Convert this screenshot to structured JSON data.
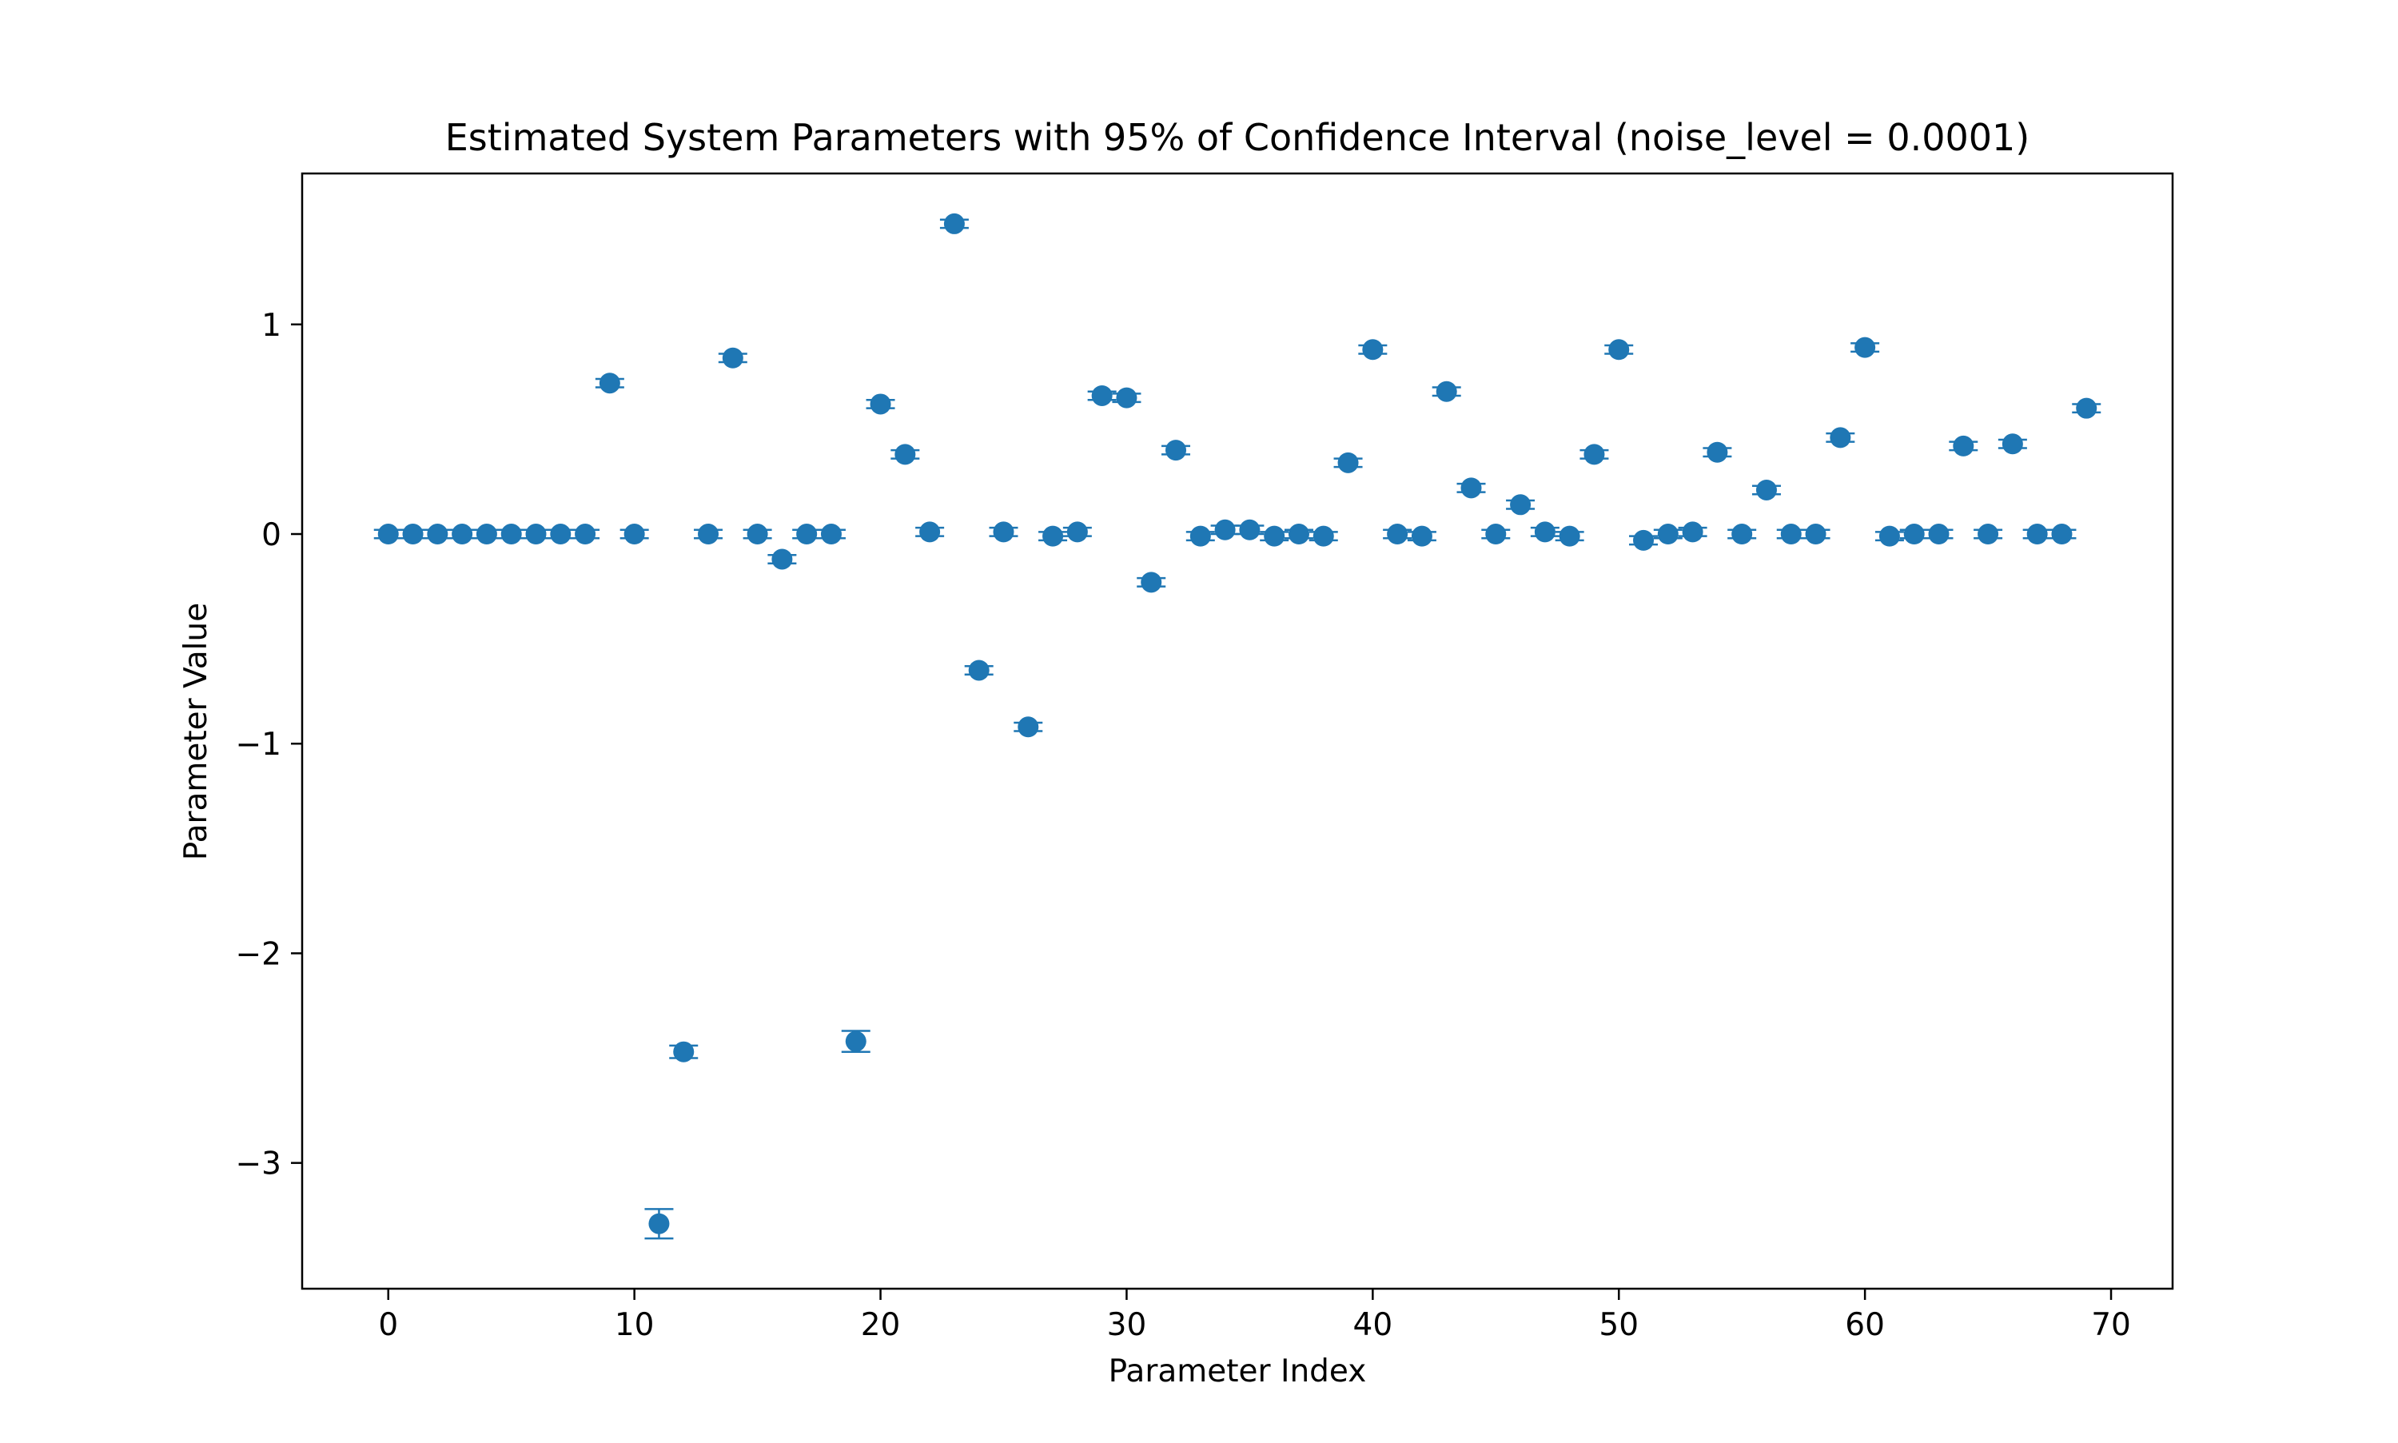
{
  "chart_data": {
    "type": "scatter",
    "title": "Estimated System Parameters with 95% of Confidence Interval (noise_level = 0.0001)",
    "xlabel": "Parameter Index",
    "ylabel": "Parameter Value",
    "xlim": [
      -3.5,
      72.5
    ],
    "ylim": [
      -3.6,
      1.72
    ],
    "xticks": [
      0,
      10,
      20,
      30,
      40,
      50,
      60,
      70
    ],
    "xtick_labels": [
      "0",
      "10",
      "20",
      "30",
      "40",
      "50",
      "60",
      "70"
    ],
    "yticks": [
      1,
      0,
      -1,
      -2,
      -3
    ],
    "ytick_labels": [
      "1",
      "0",
      "−1",
      "−2",
      "−3"
    ],
    "grid": false,
    "legend": "none",
    "color": "#1f77b4",
    "series": [
      {
        "x": [
          0,
          1,
          2,
          3,
          4,
          5,
          6,
          7,
          8,
          9,
          10,
          11,
          12,
          13,
          14,
          15,
          16,
          17,
          18,
          19,
          20,
          21,
          22,
          23,
          24,
          25,
          26,
          27,
          28,
          29,
          30,
          31,
          32,
          33,
          34,
          35,
          36,
          37,
          38,
          39,
          40,
          41,
          42,
          43,
          44,
          45,
          46,
          47,
          48,
          49,
          50,
          51,
          52,
          53,
          54,
          55,
          56,
          57,
          58,
          59,
          60,
          61,
          62,
          63,
          64,
          65,
          66,
          67,
          68,
          69
        ],
        "values": [
          0,
          0,
          0,
          0,
          0,
          0,
          0,
          0,
          0,
          0.72,
          0,
          -3.29,
          -2.47,
          0,
          0.84,
          0,
          -0.12,
          0,
          0,
          -2.42,
          0.62,
          0.38,
          0.01,
          1.48,
          -0.65,
          0.01,
          -0.92,
          -0.01,
          0.01,
          0.66,
          0.65,
          -0.23,
          0.4,
          -0.01,
          0.02,
          0.02,
          -0.01,
          0,
          -0.01,
          0.34,
          0.88,
          0,
          -0.01,
          0.68,
          0.22,
          0,
          0.14,
          0.01,
          -0.01,
          0.38,
          0.88,
          -0.03,
          0,
          0.01,
          0.39,
          0,
          0.21,
          0,
          0,
          0.46,
          0.89,
          -0.01,
          0,
          0,
          0.42,
          0,
          0.43,
          0,
          0,
          0.6
        ],
        "errors": [
          0.02,
          0.02,
          0.02,
          0.02,
          0.02,
          0.02,
          0.02,
          0.02,
          0.02,
          0.02,
          0.02,
          0.07,
          0.03,
          0.02,
          0.02,
          0.02,
          0.02,
          0.02,
          0.02,
          0.05,
          0.02,
          0.02,
          0.02,
          0.02,
          0.02,
          0.02,
          0.02,
          0.02,
          0.02,
          0.02,
          0.02,
          0.02,
          0.02,
          0.02,
          0.02,
          0.02,
          0.02,
          0.02,
          0.02,
          0.02,
          0.02,
          0.02,
          0.02,
          0.02,
          0.02,
          0.02,
          0.02,
          0.02,
          0.02,
          0.02,
          0.02,
          0.02,
          0.02,
          0.02,
          0.02,
          0.02,
          0.02,
          0.02,
          0.02,
          0.02,
          0.02,
          0.02,
          0.02,
          0.02,
          0.02,
          0.02,
          0.02,
          0.02,
          0.02,
          0.02
        ]
      }
    ]
  }
}
